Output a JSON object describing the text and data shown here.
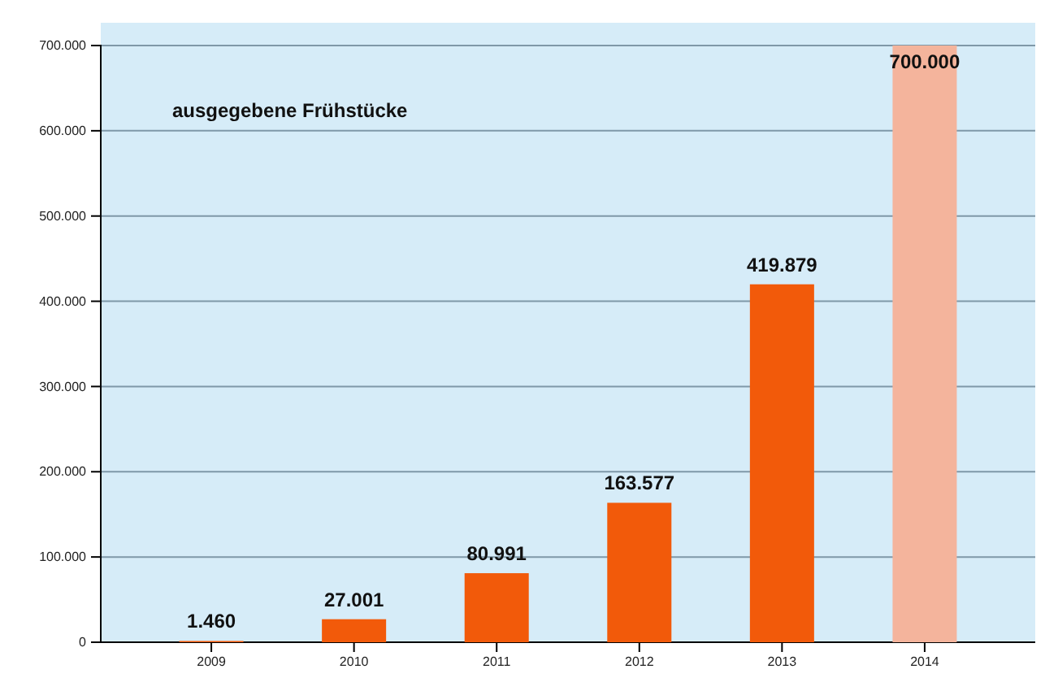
{
  "chart_data": {
    "type": "bar",
    "title": "ausgegebene Frühstücke",
    "categories": [
      "2009",
      "2010",
      "2011",
      "2012",
      "2013",
      "2014"
    ],
    "values": [
      1460,
      27001,
      80991,
      163577,
      419879,
      700000
    ],
    "value_labels": [
      "1.460",
      "27.001",
      "80.991",
      "163.577",
      "419.879",
      "700.000"
    ],
    "colors": [
      "#f25a0a",
      "#f25a0a",
      "#f25a0a",
      "#f25a0a",
      "#f25a0a",
      "#f4b49c"
    ],
    "ylim": [
      0,
      700000
    ],
    "yticks": [
      {
        "value": 0,
        "label": "0"
      },
      {
        "value": 100000,
        "label": "100.000"
      },
      {
        "value": 200000,
        "label": "200.000"
      },
      {
        "value": 300000,
        "label": "300.000"
      },
      {
        "value": 400000,
        "label": "400.000"
      },
      {
        "value": 500000,
        "label": "500.000"
      },
      {
        "value": 600000,
        "label": "600.000"
      },
      {
        "value": 700000,
        "label": "700.000"
      }
    ],
    "grid": "y"
  }
}
